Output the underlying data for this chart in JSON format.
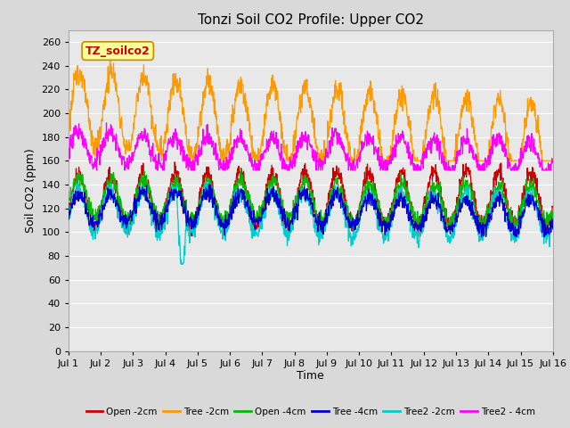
{
  "title": "Tonzi Soil CO2 Profile: Upper CO2",
  "ylabel": "Soil CO2 (ppm)",
  "xlabel": "Time",
  "annotation": "TZ_soilco2",
  "ylim": [
    0,
    270
  ],
  "yticks": [
    0,
    20,
    40,
    60,
    80,
    100,
    120,
    140,
    160,
    180,
    200,
    220,
    240,
    260
  ],
  "xticklabels": [
    "Jul 1",
    "Jul 2",
    "Jul 3",
    "Jul 4",
    "Jul 5",
    "Jul 6",
    "Jul 7",
    "Jul 8",
    "Jul 9",
    "Jul 10",
    "Jul 11",
    "Jul 12",
    "Jul 13",
    "Jul 14",
    "Jul 15",
    "Jul 16"
  ],
  "legend_labels": [
    "Open -2cm",
    "Tree -2cm",
    "Open -4cm",
    "Tree -4cm",
    "Tree2 -2cm",
    "Tree2 - 4cm"
  ],
  "legend_colors": [
    "#cc0000",
    "#ff9900",
    "#00bb00",
    "#0000cc",
    "#00cccc",
    "#ff00ff"
  ],
  "background_color": "#d9d9d9",
  "plot_background": "#e8e8e8",
  "grid_color": "#ffffff",
  "title_fontsize": 11,
  "axis_label_fontsize": 9,
  "tick_fontsize": 8,
  "n_points": 1440,
  "n_days": 15,
  "annotation_bg": "#ffff99",
  "annotation_border": "#cc8800"
}
